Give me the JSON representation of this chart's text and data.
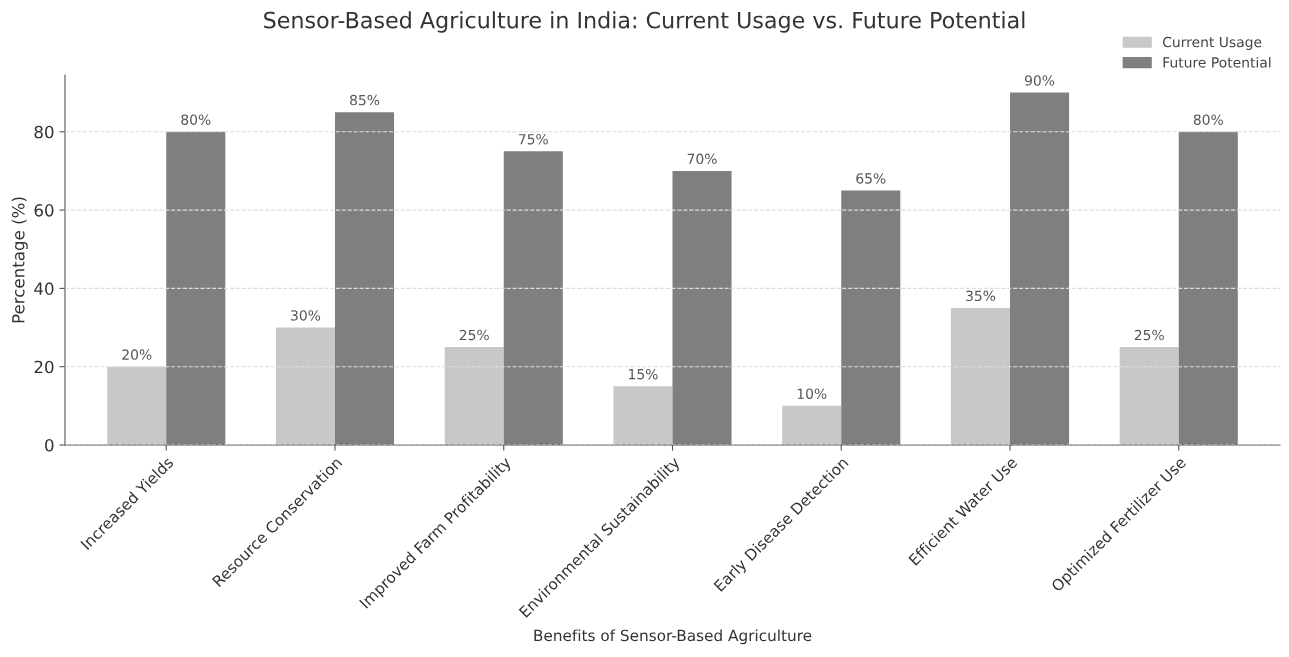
{
  "chart_data": {
    "type": "bar",
    "title": "Sensor-Based Agriculture in India: Current Usage vs. Future Potential",
    "xlabel": "Benefits of Sensor-Based Agriculture",
    "ylabel": "Percentage (%)",
    "categories": [
      "Increased Yields",
      "Resource Conservation",
      "Improved Farm Profitability",
      "Environmental Sustainability",
      "Early Disease Detection",
      "Efficient Water Use",
      "Optimized Fertilizer Use"
    ],
    "series": [
      {
        "name": "Current Usage",
        "color": "#c8c8c8",
        "values": [
          20,
          30,
          25,
          15,
          10,
          35,
          25
        ],
        "value_labels": [
          "20%",
          "30%",
          "25%",
          "15%",
          "10%",
          "35%",
          "25%"
        ]
      },
      {
        "name": "Future Potential",
        "color": "#7f7f7f",
        "values": [
          80,
          85,
          75,
          70,
          65,
          90,
          80
        ],
        "value_labels": [
          "80%",
          "85%",
          "75%",
          "70%",
          "65%",
          "90%",
          "80%"
        ]
      }
    ],
    "ylim": [
      0,
      94.5
    ],
    "yticks": [
      0,
      20,
      40,
      60,
      80
    ],
    "grid": "y",
    "legend": "top right"
  }
}
